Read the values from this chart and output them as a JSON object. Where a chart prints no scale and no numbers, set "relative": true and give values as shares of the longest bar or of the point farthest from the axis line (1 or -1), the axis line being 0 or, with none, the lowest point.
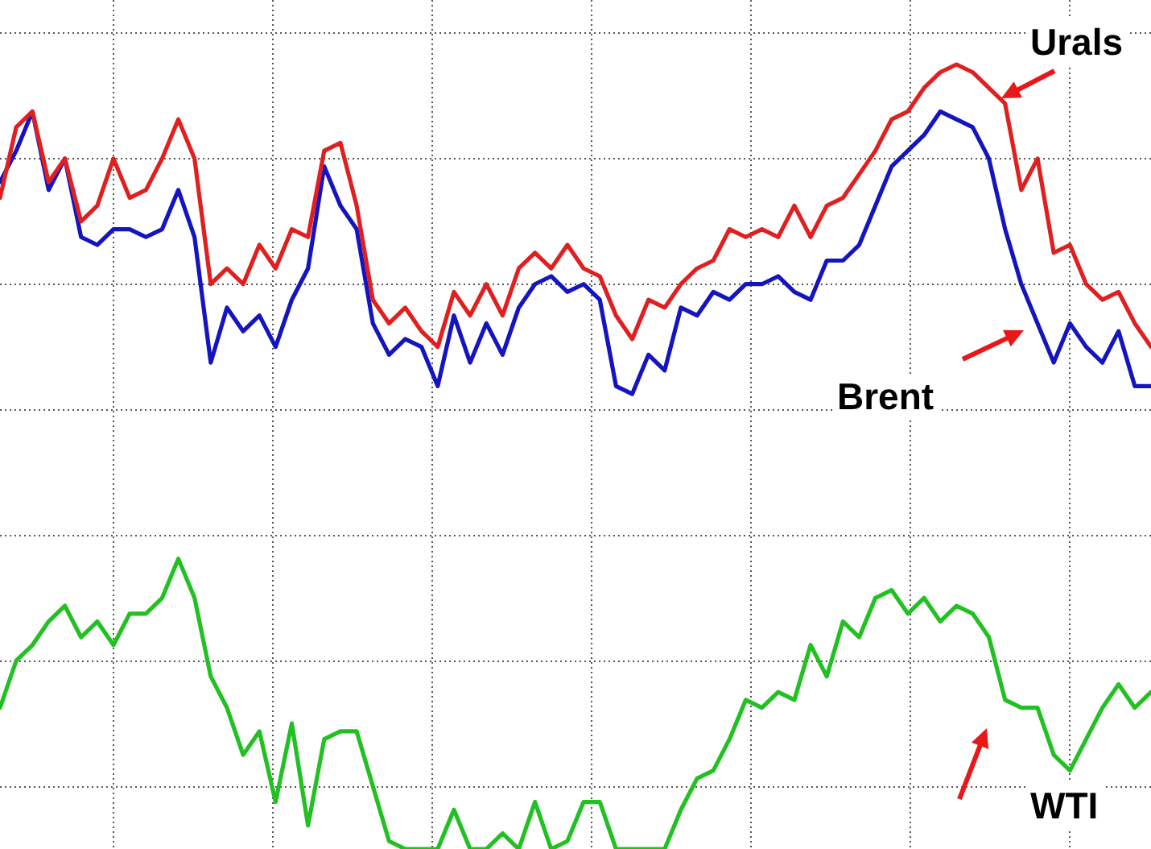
{
  "chart_data": {
    "type": "line",
    "relative": true,
    "grid": true,
    "legend": false,
    "marker": "none",
    "line_style": "solid",
    "categories": [
      null,
      null,
      null,
      null,
      null,
      null,
      null,
      null,
      null,
      null,
      null,
      null,
      null,
      null,
      null,
      null,
      null,
      null,
      null,
      null,
      null,
      null,
      null,
      null,
      null,
      null,
      null,
      null,
      null,
      null,
      null,
      null,
      null,
      null,
      null,
      null,
      null,
      null,
      null,
      null,
      null,
      null,
      null,
      null,
      null,
      null,
      null,
      null,
      null,
      null,
      null,
      null,
      null,
      null,
      null,
      null,
      null,
      null,
      null,
      null,
      null,
      null,
      null,
      null,
      null,
      null,
      null,
      null,
      null,
      null,
      null,
      null
    ],
    "series": [
      {
        "name": "Urals",
        "color": "#e02020",
        "values": [
          0.83,
          0.92,
          0.94,
          0.85,
          0.88,
          0.8,
          0.82,
          0.88,
          0.83,
          0.84,
          0.88,
          0.93,
          0.88,
          0.72,
          0.74,
          0.72,
          0.77,
          0.74,
          0.79,
          0.78,
          0.89,
          0.9,
          0.82,
          0.7,
          0.67,
          0.69,
          0.66,
          0.64,
          0.71,
          0.68,
          0.72,
          0.68,
          0.74,
          0.76,
          0.74,
          0.77,
          0.74,
          0.73,
          0.68,
          0.65,
          0.7,
          0.69,
          0.72,
          0.74,
          0.75,
          0.79,
          0.78,
          0.79,
          0.78,
          0.82,
          0.78,
          0.82,
          0.83,
          0.86,
          0.89,
          0.93,
          0.94,
          0.97,
          0.99,
          1,
          0.99,
          0.97,
          0.95,
          0.84,
          0.88,
          0.76,
          0.77,
          0.72,
          0.7,
          0.71,
          0.67,
          0.64
        ]
      },
      {
        "name": "Brent",
        "color": "#1414c0",
        "values": [
          0.85,
          0.89,
          0.94,
          0.84,
          0.88,
          0.78,
          0.77,
          0.79,
          0.79,
          0.78,
          0.79,
          0.84,
          0.78,
          0.62,
          0.69,
          0.66,
          0.68,
          0.64,
          0.7,
          0.74,
          0.87,
          0.82,
          0.79,
          0.67,
          0.63,
          0.65,
          0.64,
          0.59,
          0.68,
          0.62,
          0.67,
          0.63,
          0.69,
          0.72,
          0.73,
          0.71,
          0.72,
          0.7,
          0.59,
          0.58,
          0.63,
          0.61,
          0.69,
          0.68,
          0.71,
          0.7,
          0.72,
          0.72,
          0.73,
          0.71,
          0.7,
          0.75,
          0.75,
          0.77,
          0.82,
          0.87,
          0.89,
          0.91,
          0.94,
          0.93,
          0.92,
          0.88,
          0.79,
          0.72,
          0.67,
          0.62,
          0.67,
          0.64,
          0.62,
          0.66,
          0.59,
          0.59
        ]
      },
      {
        "name": "WTI",
        "color": "#22c022",
        "values": [
          0.18,
          0.24,
          0.26,
          0.29,
          0.31,
          0.27,
          0.29,
          0.26,
          0.3,
          0.3,
          0.32,
          0.37,
          0.32,
          0.22,
          0.18,
          0.12,
          0.15,
          0.06,
          0.16,
          0.03,
          0.14,
          0.15,
          0.15,
          0.08,
          0.01,
          0,
          0,
          0,
          0.05,
          0,
          0,
          0.02,
          0,
          0.06,
          0,
          0.01,
          0.06,
          0.06,
          0,
          0,
          0,
          0,
          0.05,
          0.09,
          0.1,
          0.14,
          0.19,
          0.18,
          0.2,
          0.19,
          0.26,
          0.22,
          0.29,
          0.27,
          0.32,
          0.33,
          0.3,
          0.32,
          0.29,
          0.31,
          0.3,
          0.27,
          0.19,
          0.18,
          0.18,
          0.12,
          0.1,
          0.14,
          0.18,
          0.21,
          0.18,
          0.2
        ]
      }
    ]
  }
}
